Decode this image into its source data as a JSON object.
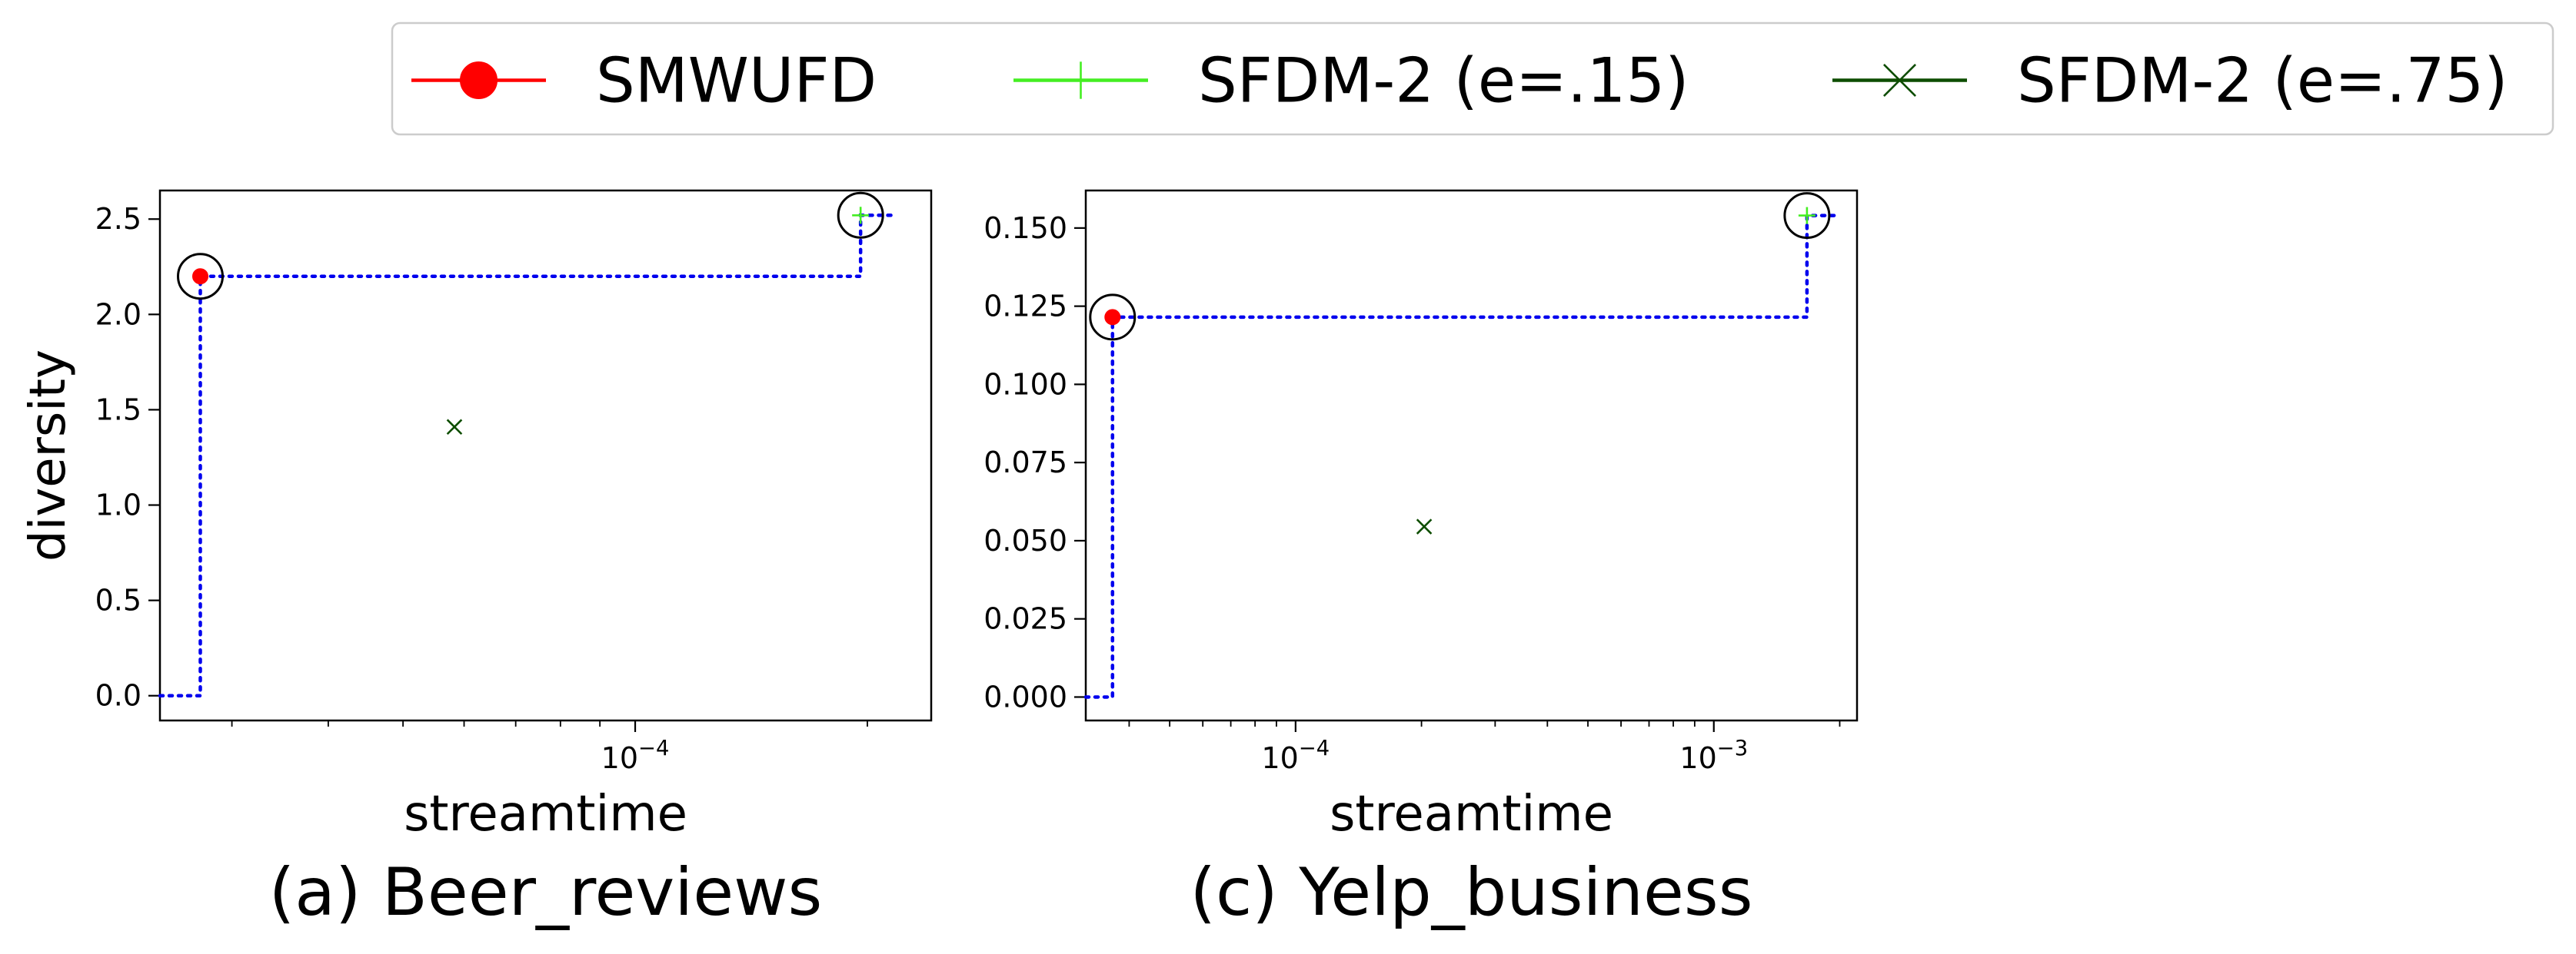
{
  "legend": {
    "entries": [
      {
        "label": "SMWUFD",
        "color": "#ff0000",
        "marker": "circle"
      },
      {
        "label": "SFDM-2 (e=.15)",
        "color": "#44ee22",
        "marker": "plus"
      },
      {
        "label": "SFDM-2 (e=.75)",
        "color": "#0d4d00",
        "marker": "x"
      }
    ],
    "placement": "top-center"
  },
  "chart_data": [
    {
      "type": "scatter",
      "caption": "(a) Beer_reviews",
      "xlabel": "streamtime",
      "ylabel": "diversity",
      "xscale": "log",
      "xlim": [
        2.42e-05,
        0.000242
      ],
      "ylim": [
        -0.13,
        2.65
      ],
      "xticks": [
        {
          "value": 0.0001,
          "label": "10−4"
        }
      ],
      "yticks": [
        {
          "value": 0,
          "label": "0.0"
        },
        {
          "value": 0.5,
          "label": "0.5"
        },
        {
          "value": 1.0,
          "label": "1.0"
        },
        {
          "value": 1.5,
          "label": "1.5"
        },
        {
          "value": 2.0,
          "label": "2.0"
        },
        {
          "value": 2.5,
          "label": "2.5"
        }
      ],
      "series": [
        {
          "name": "SMWUFD",
          "points": [
            {
              "x": 2.73e-05,
              "y": 2.2
            }
          ]
        },
        {
          "name": "SFDM-2 (e=.15)",
          "points": [
            {
              "x": 0.000196,
              "y": 2.52
            }
          ]
        },
        {
          "name": "SFDM-2 (e=.75)",
          "points": [
            {
              "x": 5.83e-05,
              "y": 1.41
            }
          ]
        }
      ],
      "pareto_front": [
        {
          "x": 2.42e-05,
          "y": 0
        },
        {
          "x": 2.73e-05,
          "y": 0
        },
        {
          "x": 2.73e-05,
          "y": 2.2
        },
        {
          "x": 0.000196,
          "y": 2.2
        },
        {
          "x": 0.000196,
          "y": 2.52
        },
        {
          "x": 0.000217,
          "y": 2.52
        }
      ],
      "pareto_color": "#0000ee",
      "circled": [
        {
          "x": 2.73e-05,
          "y": 2.2
        },
        {
          "x": 0.000196,
          "y": 2.52
        }
      ]
    },
    {
      "type": "scatter",
      "caption": "(c) Yelp_business",
      "xlabel": "streamtime",
      "ylabel": "",
      "xscale": "log",
      "xlim": [
        3.15e-05,
        0.0022
      ],
      "ylim": [
        -0.0075,
        0.162
      ],
      "xticks": [
        {
          "value": 0.0001,
          "label": "10−4"
        },
        {
          "value": 0.001,
          "label": "10−3"
        }
      ],
      "yticks": [
        {
          "value": 0,
          "label": "0.000"
        },
        {
          "value": 0.025,
          "label": "0.025"
        },
        {
          "value": 0.05,
          "label": "0.050"
        },
        {
          "value": 0.075,
          "label": "0.075"
        },
        {
          "value": 0.1,
          "label": "0.100"
        },
        {
          "value": 0.125,
          "label": "0.125"
        },
        {
          "value": 0.15,
          "label": "0.150"
        }
      ],
      "series": [
        {
          "name": "SMWUFD",
          "points": [
            {
              "x": 3.65e-05,
              "y": 0.1215
            }
          ]
        },
        {
          "name": "SFDM-2 (e=.15)",
          "points": [
            {
              "x": 0.00167,
              "y": 0.154
            }
          ]
        },
        {
          "name": "SFDM-2 (e=.75)",
          "points": [
            {
              "x": 0.000203,
              "y": 0.0545
            }
          ]
        }
      ],
      "pareto_front": [
        {
          "x": 3.15e-05,
          "y": 0
        },
        {
          "x": 3.65e-05,
          "y": 0
        },
        {
          "x": 3.65e-05,
          "y": 0.1215
        },
        {
          "x": 0.00167,
          "y": 0.1215
        },
        {
          "x": 0.00167,
          "y": 0.154
        },
        {
          "x": 0.00195,
          "y": 0.154
        }
      ],
      "pareto_color": "#0000ee",
      "circled": [
        {
          "x": 3.65e-05,
          "y": 0.1215
        },
        {
          "x": 0.00167,
          "y": 0.154
        }
      ]
    }
  ]
}
